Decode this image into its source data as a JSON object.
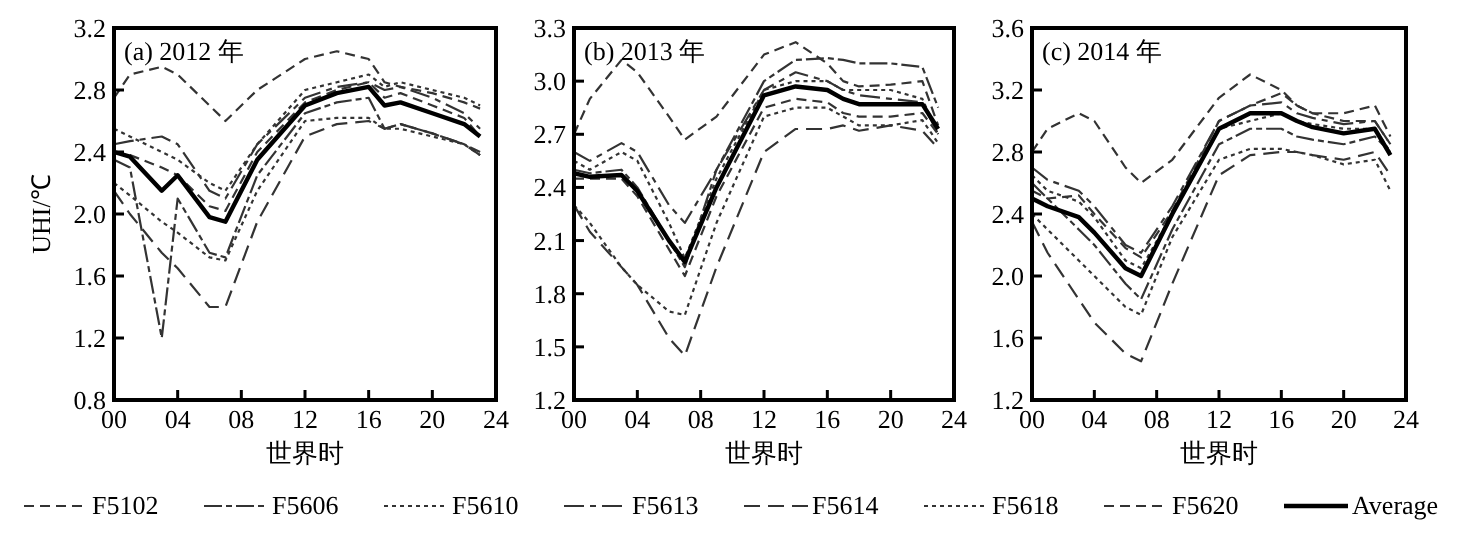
{
  "chart_data": [
    {
      "type": "line",
      "title": "(a) 2012 年",
      "xlabel": "世界时",
      "ylabel": "UHI/℃",
      "x": [
        0,
        1,
        3,
        4,
        6,
        7,
        9,
        12,
        14,
        16,
        17,
        18,
        20,
        22,
        23
      ],
      "xlim": [
        0,
        24
      ],
      "xticks": [
        {
          "value": 0,
          "label": "00"
        },
        {
          "value": 4,
          "label": "04"
        },
        {
          "value": 8,
          "label": "08"
        },
        12,
        16,
        20,
        24
      ],
      "ylim": [
        0.8,
        3.2
      ],
      "yticks": [
        {
          "value": 0.8,
          "label": "0.8"
        },
        1.2,
        1.6,
        {
          "value": 2,
          "label": "2.0"
        },
        2.4,
        2.8,
        3.2
      ],
      "legend": "bottom",
      "grid": false,
      "series": [
        {
          "name": "F5102",
          "color": "#333333",
          "line_style": "dashed",
          "values": [
            2.75,
            2.9,
            2.95,
            2.9,
            2.7,
            2.6,
            2.8,
            3.0,
            3.05,
            3.0,
            2.85,
            2.82,
            2.78,
            2.72,
            2.68
          ]
        },
        {
          "name": "F5606",
          "color": "#333333",
          "line_style": "dashed",
          "values": [
            2.35,
            2.3,
            1.2,
            2.1,
            1.75,
            1.72,
            2.25,
            2.65,
            2.72,
            2.75,
            2.55,
            2.58,
            2.52,
            2.45,
            2.4
          ]
        },
        {
          "name": "F5610",
          "color": "#333333",
          "line_style": "dotted",
          "values": [
            2.2,
            2.12,
            1.95,
            1.88,
            1.72,
            1.7,
            2.15,
            2.6,
            2.62,
            2.62,
            2.55,
            2.55,
            2.5,
            2.45,
            2.38
          ]
        },
        {
          "name": "F5613",
          "color": "#333333",
          "line_style": "dashed",
          "values": [
            2.45,
            2.47,
            2.5,
            2.45,
            2.15,
            2.1,
            2.45,
            2.75,
            2.82,
            2.85,
            2.8,
            2.82,
            2.75,
            2.65,
            2.55
          ]
        },
        {
          "name": "F5614",
          "color": "#333333",
          "line_style": "dashed",
          "values": [
            2.15,
            2.0,
            1.75,
            1.65,
            1.4,
            1.4,
            1.95,
            2.5,
            2.58,
            2.6,
            2.55,
            2.58,
            2.52,
            2.45,
            2.38
          ]
        },
        {
          "name": "F5618",
          "color": "#333333",
          "line_style": "dotted",
          "values": [
            2.55,
            2.5,
            2.4,
            2.35,
            2.2,
            2.15,
            2.45,
            2.8,
            2.85,
            2.9,
            2.82,
            2.85,
            2.8,
            2.75,
            2.7
          ]
        },
        {
          "name": "F5620",
          "color": "#333333",
          "line_style": "dashed",
          "values": [
            2.4,
            2.38,
            2.3,
            2.25,
            2.05,
            2.02,
            2.4,
            2.72,
            2.8,
            2.85,
            2.75,
            2.78,
            2.7,
            2.62,
            2.5
          ]
        },
        {
          "name": "Average",
          "color": "#000000",
          "line_style": "solid",
          "values": [
            2.4,
            2.37,
            2.15,
            2.25,
            1.98,
            1.95,
            2.35,
            2.7,
            2.78,
            2.82,
            2.7,
            2.72,
            2.65,
            2.58,
            2.5
          ]
        }
      ]
    },
    {
      "type": "line",
      "title": "(b) 2013 年",
      "xlabel": "世界时",
      "x": [
        0,
        1,
        3,
        4,
        6,
        7,
        9,
        12,
        14,
        16,
        17,
        18,
        20,
        22,
        23
      ],
      "xlim": [
        0,
        24
      ],
      "xticks": [
        {
          "value": 0,
          "label": "00"
        },
        {
          "value": 4,
          "label": "04"
        },
        {
          "value": 8,
          "label": "08"
        },
        12,
        16,
        20,
        24
      ],
      "ylim": [
        1.2,
        3.3
      ],
      "yticks": [
        1.2,
        1.5,
        1.8,
        2.1,
        2.4,
        2.7,
        {
          "value": 3,
          "label": "3.0"
        },
        3.3
      ],
      "grid": false,
      "series": [
        {
          "color": "#333333",
          "line_style": "dashed",
          "values": [
            2.7,
            2.9,
            3.12,
            3.05,
            2.8,
            2.67,
            2.8,
            3.15,
            3.22,
            3.1,
            3.0,
            2.97,
            2.98,
            3.0,
            2.75
          ]
        },
        {
          "color": "#333333",
          "line_style": "dashed",
          "values": [
            2.5,
            2.48,
            2.5,
            2.4,
            2.1,
            1.95,
            2.5,
            3.0,
            3.12,
            3.13,
            3.12,
            3.1,
            3.1,
            3.08,
            2.85
          ]
        },
        {
          "color": "#333333",
          "line_style": "dotted",
          "values": [
            2.3,
            2.2,
            1.95,
            1.85,
            1.7,
            1.68,
            2.2,
            2.8,
            2.85,
            2.85,
            2.8,
            2.75,
            2.75,
            2.78,
            2.65
          ]
        },
        {
          "color": "#333333",
          "line_style": "dashed",
          "values": [
            2.6,
            2.55,
            2.65,
            2.6,
            2.3,
            2.2,
            2.5,
            2.95,
            3.05,
            3.0,
            2.95,
            2.92,
            2.9,
            2.88,
            2.7
          ]
        },
        {
          "color": "#333333",
          "line_style": "dashed",
          "values": [
            2.3,
            2.15,
            1.95,
            1.85,
            1.55,
            1.45,
            1.95,
            2.6,
            2.73,
            2.73,
            2.75,
            2.72,
            2.75,
            2.72,
            2.62
          ]
        },
        {
          "color": "#333333",
          "line_style": "dotted",
          "values": [
            2.55,
            2.5,
            2.6,
            2.55,
            2.2,
            2.0,
            2.45,
            2.95,
            3.0,
            3.0,
            2.95,
            2.95,
            2.95,
            2.9,
            2.7
          ]
        },
        {
          "color": "#333333",
          "line_style": "dashed",
          "values": [
            2.45,
            2.45,
            2.45,
            2.35,
            2.05,
            1.9,
            2.35,
            2.85,
            2.9,
            2.88,
            2.82,
            2.8,
            2.8,
            2.82,
            2.7
          ]
        },
        {
          "color": "#000000",
          "line_style": "solid",
          "values": [
            2.48,
            2.46,
            2.47,
            2.38,
            2.1,
            1.98,
            2.4,
            2.92,
            2.97,
            2.95,
            2.9,
            2.87,
            2.87,
            2.87,
            2.73
          ]
        }
      ]
    },
    {
      "type": "line",
      "title": "(c) 2014 年",
      "xlabel": "世界时",
      "x": [
        0,
        1,
        3,
        4,
        6,
        7,
        9,
        12,
        14,
        16,
        17,
        18,
        20,
        22,
        23
      ],
      "xlim": [
        0,
        24
      ],
      "xticks": [
        {
          "value": 0,
          "label": "00"
        },
        {
          "value": 4,
          "label": "04"
        },
        {
          "value": 8,
          "label": "08"
        },
        12,
        16,
        20,
        24
      ],
      "ylim": [
        1.2,
        3.6
      ],
      "yticks": [
        1.2,
        1.6,
        {
          "value": 2,
          "label": "2.0"
        },
        2.4,
        2.8,
        3.2,
        3.6
      ],
      "grid": false,
      "series": [
        {
          "color": "#333333",
          "line_style": "dashed",
          "values": [
            2.8,
            2.95,
            3.05,
            3.0,
            2.7,
            2.6,
            2.75,
            3.15,
            3.3,
            3.2,
            3.1,
            3.05,
            3.0,
            3.0,
            2.85
          ]
        },
        {
          "color": "#333333",
          "line_style": "dashed",
          "values": [
            2.6,
            2.5,
            2.3,
            2.2,
            1.95,
            1.85,
            2.3,
            2.85,
            2.95,
            2.95,
            2.9,
            2.88,
            2.85,
            2.9,
            2.8
          ]
        },
        {
          "color": "#333333",
          "line_style": "dotted",
          "values": [
            2.4,
            2.3,
            2.1,
            2.0,
            1.8,
            1.75,
            2.25,
            2.75,
            2.82,
            2.82,
            2.8,
            2.78,
            2.72,
            2.75,
            2.55
          ]
        },
        {
          "color": "#333333",
          "line_style": "dashed",
          "values": [
            2.7,
            2.62,
            2.55,
            2.45,
            2.2,
            2.15,
            2.45,
            3.0,
            3.1,
            3.12,
            3.05,
            3.02,
            2.98,
            3.0,
            2.85
          ]
        },
        {
          "color": "#333333",
          "line_style": "dashed",
          "values": [
            2.35,
            2.15,
            1.85,
            1.7,
            1.5,
            1.45,
            1.95,
            2.65,
            2.78,
            2.8,
            2.8,
            2.78,
            2.75,
            2.8,
            2.65
          ]
        },
        {
          "color": "#333333",
          "line_style": "dotted",
          "values": [
            2.65,
            2.55,
            2.48,
            2.38,
            2.1,
            2.05,
            2.4,
            2.95,
            3.0,
            3.05,
            3.0,
            2.98,
            2.95,
            2.95,
            2.8
          ]
        },
        {
          "color": "#333333",
          "line_style": "dashed",
          "values": [
            2.55,
            2.5,
            2.52,
            2.4,
            2.18,
            2.12,
            2.42,
            3.0,
            3.1,
            3.18,
            3.1,
            3.05,
            3.05,
            3.1,
            2.9
          ]
        },
        {
          "color": "#000000",
          "line_style": "solid",
          "values": [
            2.5,
            2.45,
            2.38,
            2.28,
            2.05,
            2.0,
            2.4,
            2.95,
            3.05,
            3.05,
            3.0,
            2.96,
            2.92,
            2.95,
            2.78
          ]
        }
      ]
    }
  ]
}
